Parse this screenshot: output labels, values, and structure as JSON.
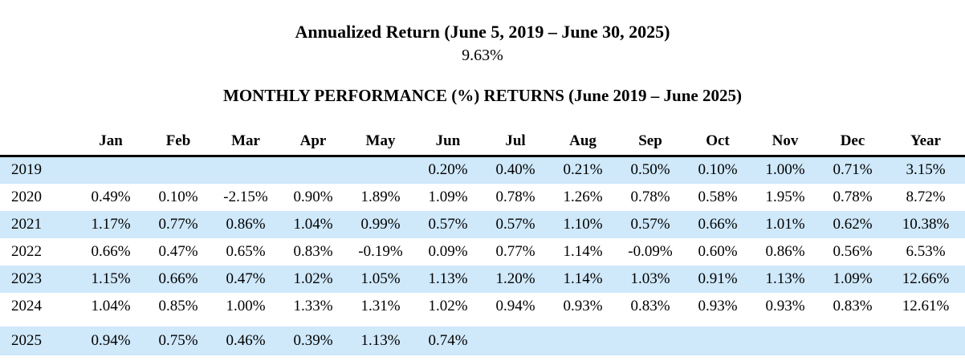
{
  "annualized": {
    "title": "Annualized Return (June 5, 2019 – June 30, 2025)",
    "value": "9.63%"
  },
  "monthly_table": {
    "title": "MONTHLY PERFORMANCE (%) RETURNS (June 2019 – June 2025)",
    "year_column_header": "",
    "columns": [
      "Jan",
      "Feb",
      "Mar",
      "Apr",
      "May",
      "Jun",
      "Jul",
      "Aug",
      "Sep",
      "Oct",
      "Nov",
      "Dec",
      "Year"
    ],
    "rows": [
      {
        "year": "2019",
        "highlighted": true,
        "gap_before": false,
        "values": [
          "",
          "",
          "",
          "",
          "",
          "0.20%",
          "0.40%",
          "0.21%",
          "0.50%",
          "0.10%",
          "1.00%",
          "0.71%",
          "3.15%"
        ]
      },
      {
        "year": "2020",
        "highlighted": false,
        "gap_before": false,
        "values": [
          "0.49%",
          "0.10%",
          "-2.15%",
          "0.90%",
          "1.89%",
          "1.09%",
          "0.78%",
          "1.26%",
          "0.78%",
          "0.58%",
          "1.95%",
          "0.78%",
          "8.72%"
        ]
      },
      {
        "year": "2021",
        "highlighted": true,
        "gap_before": false,
        "values": [
          "1.17%",
          "0.77%",
          "0.86%",
          "1.04%",
          "0.99%",
          "0.57%",
          "0.57%",
          "1.10%",
          "0.57%",
          "0.66%",
          "1.01%",
          "0.62%",
          "10.38%"
        ]
      },
      {
        "year": "2022",
        "highlighted": false,
        "gap_before": false,
        "values": [
          "0.66%",
          "0.47%",
          "0.65%",
          "0.83%",
          "-0.19%",
          "0.09%",
          "0.77%",
          "1.14%",
          "-0.09%",
          "0.60%",
          "0.86%",
          "0.56%",
          "6.53%"
        ]
      },
      {
        "year": "2023",
        "highlighted": true,
        "gap_before": false,
        "values": [
          "1.15%",
          "0.66%",
          "0.47%",
          "1.02%",
          "1.05%",
          "1.13%",
          "1.20%",
          "1.14%",
          "1.03%",
          "0.91%",
          "1.13%",
          "1.09%",
          "12.66%"
        ]
      },
      {
        "year": "2024",
        "highlighted": false,
        "gap_before": false,
        "values": [
          "1.04%",
          "0.85%",
          "1.00%",
          "1.33%",
          "1.31%",
          "1.02%",
          "0.94%",
          "0.93%",
          "0.83%",
          "0.93%",
          "0.93%",
          "0.83%",
          "12.61%"
        ]
      },
      {
        "year": "2025",
        "highlighted": true,
        "gap_before": true,
        "values": [
          "0.94%",
          "0.75%",
          "0.46%",
          "0.39%",
          "1.13%",
          "0.74%",
          "",
          "",
          "",
          "",
          "",
          "",
          ""
        ]
      }
    ]
  },
  "colors": {
    "row_highlight": "#cfe8fa",
    "rule": "#000000",
    "text": "#000000",
    "background": "#ffffff"
  }
}
